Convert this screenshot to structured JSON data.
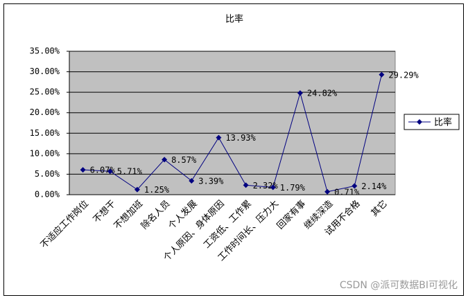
{
  "chart_data": {
    "type": "line",
    "title": "比率",
    "categories": [
      "不适应工作岗位",
      "不想干",
      "不想加班",
      "除名人员",
      "个人发展",
      "个人原因、身体原因",
      "工资低、工作累",
      "工作时间长、压力大",
      "回家有事",
      "继续深造",
      "试用不合格",
      "其它"
    ],
    "series": [
      {
        "name": "比率",
        "color": "#000080",
        "values": [
          6.07,
          5.71,
          1.25,
          8.57,
          3.39,
          13.93,
          2.32,
          1.79,
          24.82,
          0.71,
          2.14,
          29.29
        ],
        "value_labels": [
          "6.07%",
          "5.71%",
          "1.25%",
          "8.57%",
          "3.39%",
          "13.93%",
          "2.32%",
          "1.79%",
          "24.82%",
          "0.71%",
          "2.14%",
          "29.29%"
        ]
      }
    ],
    "ylim": [
      0,
      35
    ],
    "yticks": [
      {
        "value": 0,
        "label": "0.00%"
      },
      {
        "value": 5,
        "label": "5.00%"
      },
      {
        "value": 10,
        "label": "10.00%"
      },
      {
        "value": 15,
        "label": "15.00%"
      },
      {
        "value": 20,
        "label": "20.00%"
      },
      {
        "value": 25,
        "label": "25.00%"
      },
      {
        "value": 30,
        "label": "30.00%"
      },
      {
        "value": 35,
        "label": "35.00%"
      }
    ],
    "grid": true,
    "plot_background": "#c0c0c0",
    "legend": "right",
    "watermark": "CSDN @派可数据BI可视化"
  }
}
